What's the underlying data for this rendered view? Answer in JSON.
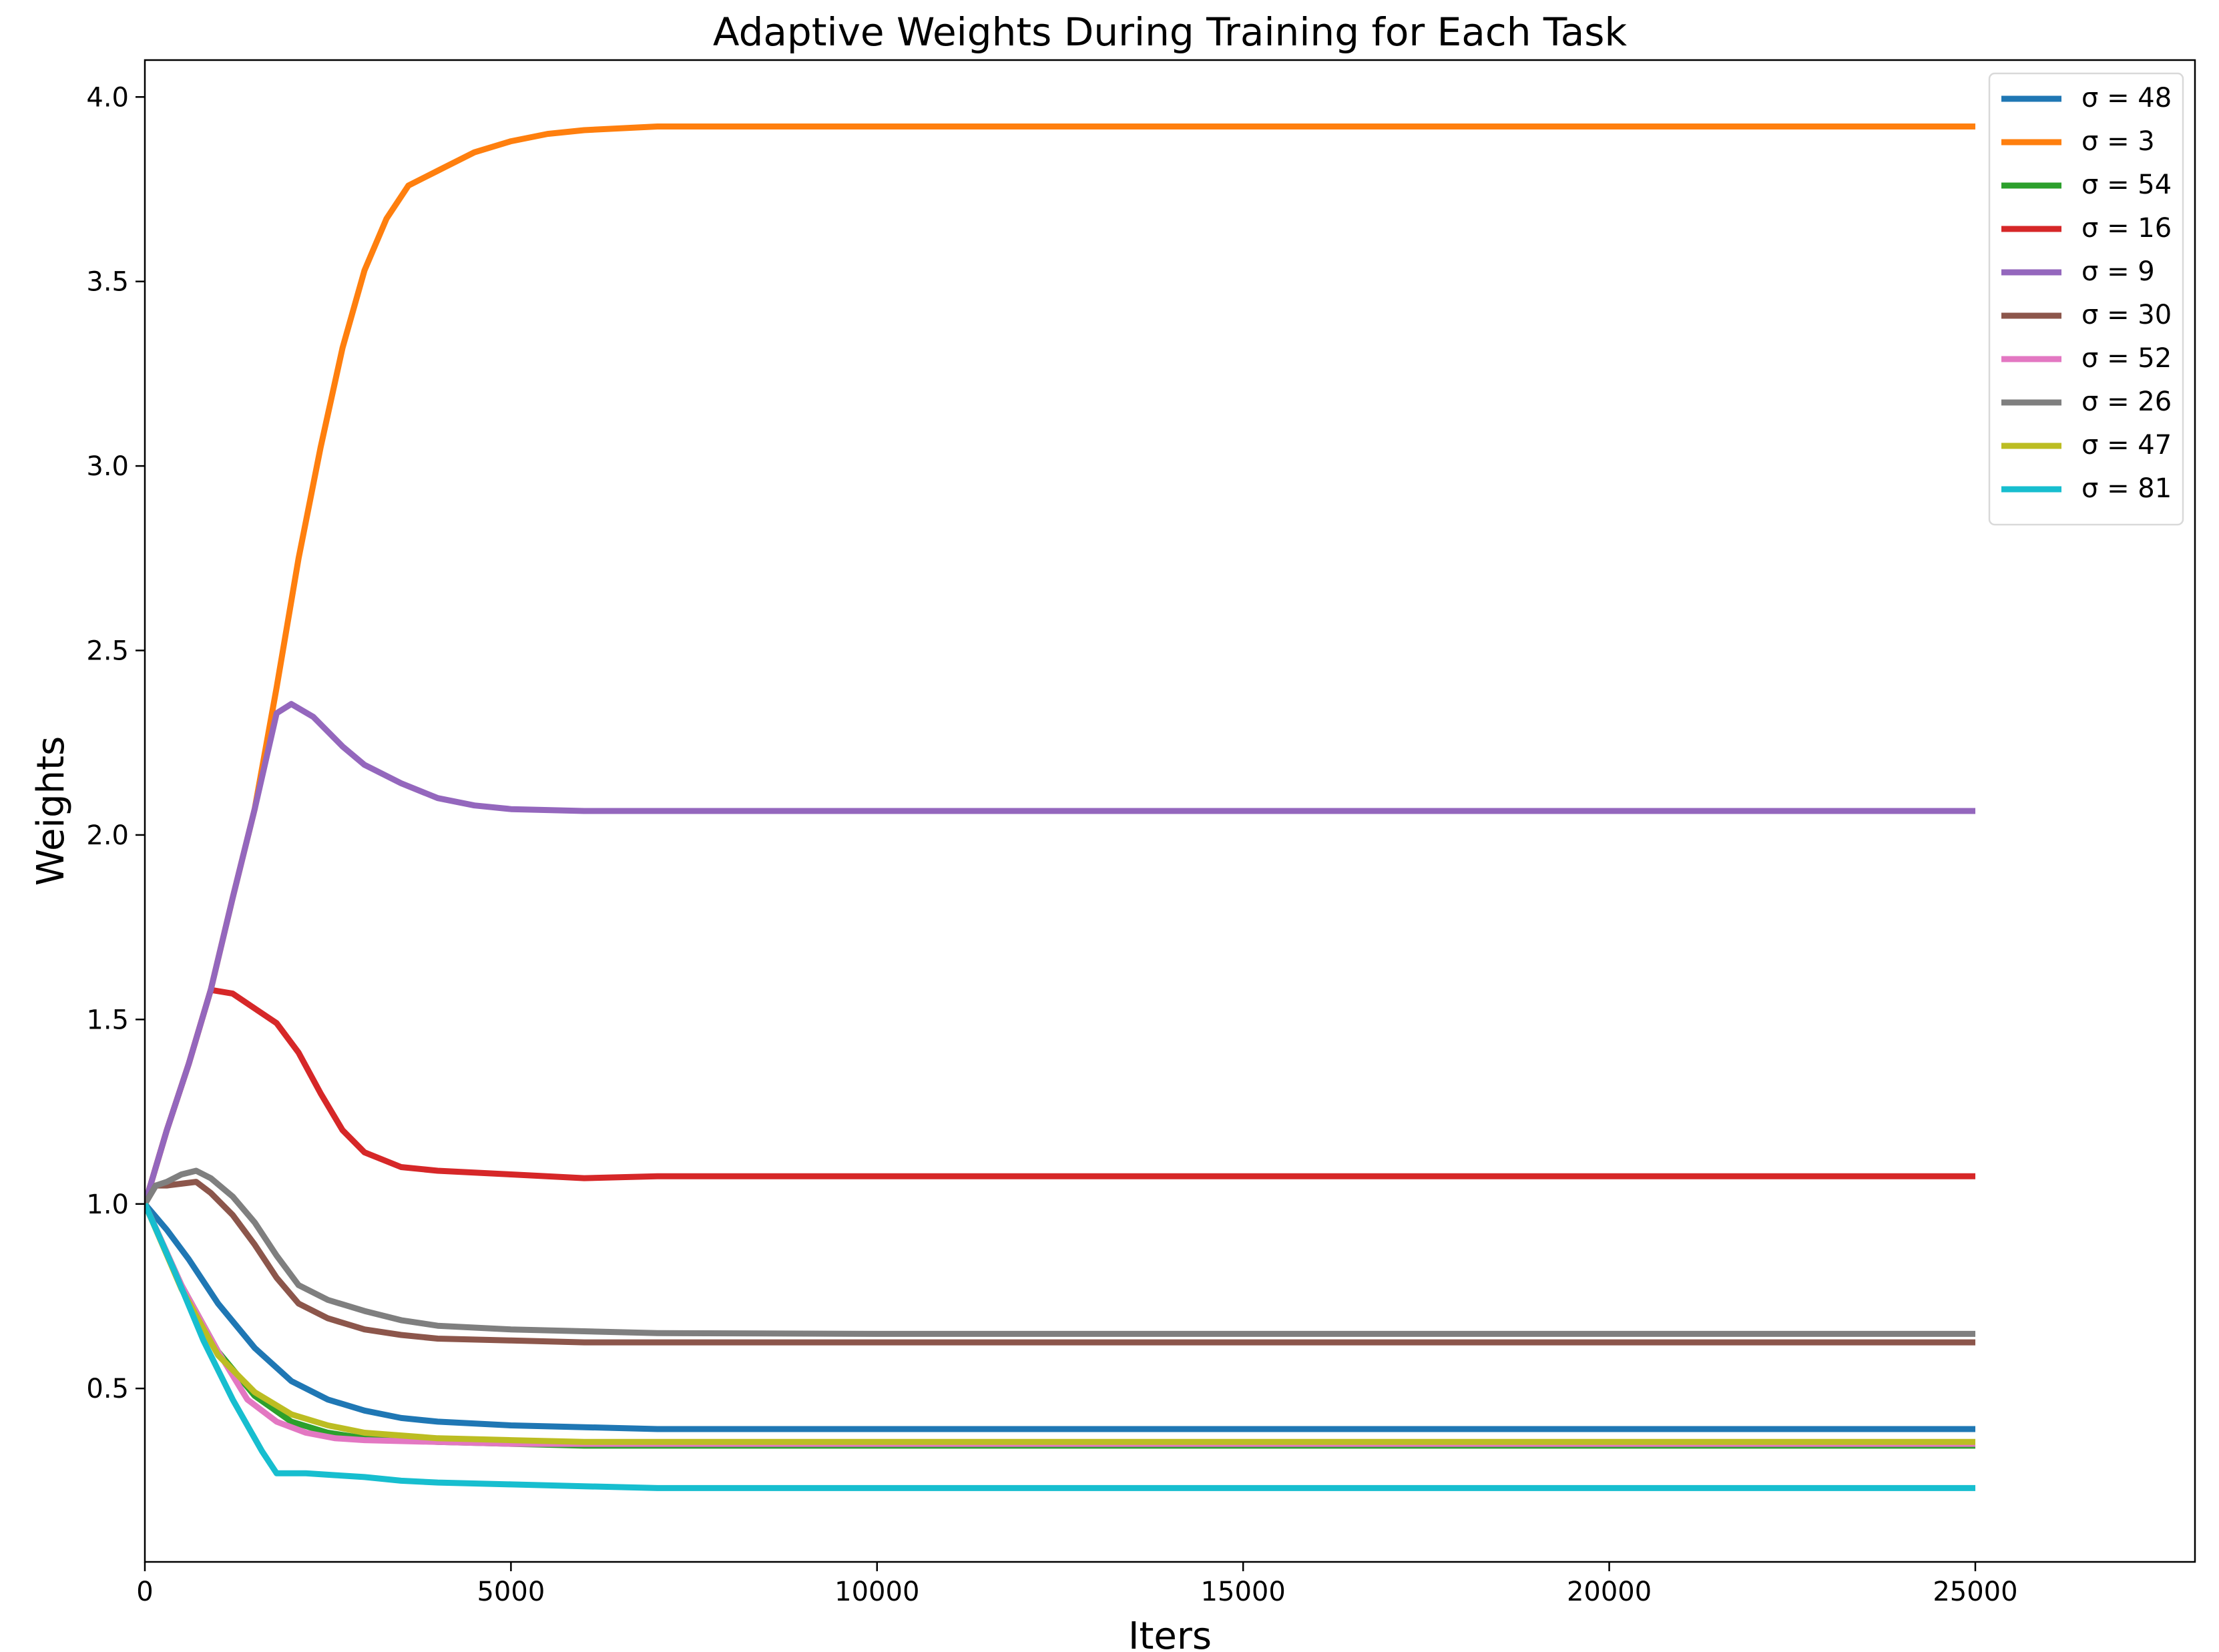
{
  "chart_data": {
    "type": "line",
    "title": "Adaptive Weights During Training for Each Task",
    "xlabel": "Iters",
    "ylabel": "Weights",
    "xlim": [
      0,
      28000
    ],
    "ylim": [
      0.03,
      4.1
    ],
    "xticks": [
      0,
      5000,
      10000,
      15000,
      20000,
      25000
    ],
    "xtick_labels": [
      "0",
      "5000",
      "10000",
      "15000",
      "20000",
      "25000"
    ],
    "yticks": [
      0.5,
      1.0,
      1.5,
      2.0,
      2.5,
      3.0,
      3.5,
      4.0
    ],
    "ytick_labels": [
      "0.5",
      "1.0",
      "1.5",
      "2.0",
      "2.5",
      "3.0",
      "3.5",
      "4.0"
    ],
    "grid": false,
    "legend_position": "top-right",
    "series": [
      {
        "name": "σ = 48",
        "color": "#1f77b4",
        "x": [
          0,
          300,
          600,
          1000,
          1500,
          2000,
          2500,
          3000,
          3500,
          4000,
          5000,
          6000,
          7000,
          10000,
          15000,
          20000,
          25000
        ],
        "y": [
          1.0,
          0.93,
          0.85,
          0.73,
          0.61,
          0.52,
          0.47,
          0.44,
          0.42,
          0.41,
          0.4,
          0.395,
          0.39,
          0.39,
          0.39,
          0.39,
          0.39
        ]
      },
      {
        "name": "σ = 3",
        "color": "#ff7f0e",
        "x": [
          0,
          300,
          600,
          900,
          1200,
          1500,
          1800,
          2100,
          2400,
          2700,
          3000,
          3300,
          3600,
          4000,
          4500,
          5000,
          5500,
          6000,
          7000,
          10000,
          15000,
          20000,
          25000
        ],
        "y": [
          1.0,
          1.2,
          1.38,
          1.58,
          1.83,
          2.07,
          2.4,
          2.75,
          3.05,
          3.32,
          3.53,
          3.67,
          3.76,
          3.8,
          3.85,
          3.88,
          3.9,
          3.91,
          3.92,
          3.92,
          3.92,
          3.92,
          3.92
        ]
      },
      {
        "name": "σ = 54",
        "color": "#2ca02c",
        "x": [
          0,
          500,
          1000,
          1500,
          2000,
          2500,
          3000,
          4000,
          5000,
          6000,
          7000,
          10000,
          15000,
          20000,
          25000
        ],
        "y": [
          1.0,
          0.78,
          0.6,
          0.48,
          0.41,
          0.38,
          0.365,
          0.355,
          0.35,
          0.345,
          0.345,
          0.345,
          0.345,
          0.345,
          0.345
        ]
      },
      {
        "name": "σ = 16",
        "color": "#d62728",
        "x": [
          0,
          300,
          600,
          900,
          1200,
          1500,
          1800,
          2100,
          2400,
          2700,
          3000,
          3500,
          4000,
          5000,
          6000,
          7000,
          10000,
          15000,
          20000,
          25000
        ],
        "y": [
          1.0,
          1.2,
          1.38,
          1.58,
          1.57,
          1.53,
          1.49,
          1.41,
          1.3,
          1.2,
          1.14,
          1.1,
          1.09,
          1.08,
          1.07,
          1.075,
          1.075,
          1.075,
          1.075,
          1.075
        ]
      },
      {
        "name": "σ = 9",
        "color": "#9467bd",
        "x": [
          0,
          300,
          600,
          900,
          1200,
          1500,
          1800,
          2000,
          2300,
          2700,
          3000,
          3500,
          4000,
          4500,
          5000,
          6000,
          7000,
          10000,
          15000,
          20000,
          25000
        ],
        "y": [
          1.0,
          1.2,
          1.38,
          1.58,
          1.83,
          2.07,
          2.33,
          2.355,
          2.32,
          2.24,
          2.19,
          2.14,
          2.1,
          2.08,
          2.07,
          2.065,
          2.065,
          2.065,
          2.065,
          2.065,
          2.065
        ]
      },
      {
        "name": "σ = 30",
        "color": "#8c564b",
        "x": [
          0,
          150,
          300,
          500,
          700,
          900,
          1200,
          1500,
          1800,
          2100,
          2500,
          3000,
          3500,
          4000,
          5000,
          6000,
          7000,
          10000,
          15000,
          20000,
          25000
        ],
        "y": [
          1.0,
          1.05,
          1.05,
          1.055,
          1.06,
          1.03,
          0.97,
          0.89,
          0.8,
          0.73,
          0.69,
          0.66,
          0.645,
          0.635,
          0.63,
          0.625,
          0.625,
          0.625,
          0.625,
          0.625,
          0.625
        ]
      },
      {
        "name": "σ = 52",
        "color": "#e377c2",
        "x": [
          0,
          500,
          1000,
          1400,
          1800,
          2200,
          2600,
          3000,
          4000,
          5000,
          6000,
          7000,
          10000,
          15000,
          20000,
          25000
        ],
        "y": [
          1.0,
          0.78,
          0.6,
          0.47,
          0.41,
          0.38,
          0.365,
          0.36,
          0.355,
          0.35,
          0.35,
          0.35,
          0.35,
          0.35,
          0.35,
          0.35
        ]
      },
      {
        "name": "σ = 26",
        "color": "#7f7f7f",
        "x": [
          0,
          150,
          300,
          500,
          700,
          900,
          1200,
          1500,
          1800,
          2100,
          2500,
          3000,
          3500,
          4000,
          5000,
          6000,
          7000,
          10000,
          15000,
          20000,
          25000
        ],
        "y": [
          1.0,
          1.05,
          1.06,
          1.08,
          1.09,
          1.07,
          1.02,
          0.95,
          0.86,
          0.78,
          0.74,
          0.71,
          0.685,
          0.67,
          0.66,
          0.655,
          0.65,
          0.648,
          0.648,
          0.648,
          0.648
        ]
      },
      {
        "name": "σ = 47",
        "color": "#bcbd22",
        "x": [
          0,
          500,
          1000,
          1500,
          2000,
          2500,
          3000,
          4000,
          5000,
          6000,
          7000,
          10000,
          15000,
          20000,
          25000
        ],
        "y": [
          1.0,
          0.77,
          0.59,
          0.49,
          0.43,
          0.4,
          0.38,
          0.365,
          0.36,
          0.355,
          0.355,
          0.355,
          0.355,
          0.355,
          0.355
        ]
      },
      {
        "name": "σ = 81",
        "color": "#17becf",
        "x": [
          0,
          400,
          800,
          1200,
          1600,
          1800,
          2200,
          2600,
          3000,
          3500,
          4000,
          5000,
          6000,
          7000,
          10000,
          15000,
          20000,
          25000
        ],
        "y": [
          1.0,
          0.82,
          0.63,
          0.47,
          0.33,
          0.27,
          0.27,
          0.265,
          0.26,
          0.25,
          0.245,
          0.24,
          0.235,
          0.23,
          0.23,
          0.23,
          0.23,
          0.23
        ]
      }
    ]
  }
}
